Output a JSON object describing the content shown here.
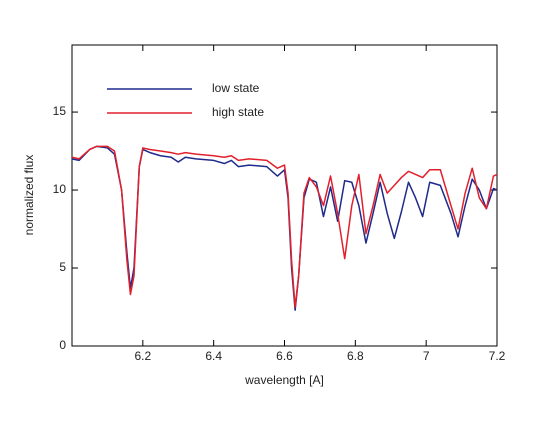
{
  "chart_data": {
    "type": "line",
    "x_label": "wavelength [A]",
    "y_label": "normalized flux",
    "x": [
      6.0,
      6.02,
      6.05,
      6.07,
      6.1,
      6.12,
      6.14,
      6.155,
      6.165,
      6.175,
      6.19,
      6.2,
      6.22,
      6.25,
      6.28,
      6.3,
      6.32,
      6.35,
      6.4,
      6.43,
      6.45,
      6.47,
      6.5,
      6.55,
      6.58,
      6.6,
      6.61,
      6.62,
      6.63,
      6.64,
      6.655,
      6.67,
      6.69,
      6.71,
      6.73,
      6.75,
      6.77,
      6.79,
      6.81,
      6.83,
      6.85,
      6.87,
      6.89,
      6.91,
      6.93,
      6.95,
      6.97,
      6.99,
      7.01,
      7.04,
      7.07,
      7.09,
      7.11,
      7.13,
      7.15,
      7.17,
      7.19,
      7.2
    ],
    "series": [
      {
        "name": "low state",
        "color": "#1f2a8a",
        "values": [
          12.0,
          11.9,
          12.6,
          12.8,
          12.7,
          12.3,
          10.0,
          6.0,
          3.7,
          5.0,
          11.5,
          12.6,
          12.4,
          12.2,
          12.1,
          11.8,
          12.1,
          12.0,
          11.9,
          11.7,
          11.9,
          11.5,
          11.6,
          11.5,
          10.9,
          11.3,
          9.5,
          5.0,
          2.3,
          4.5,
          9.5,
          10.7,
          10.5,
          8.3,
          10.2,
          8.0,
          10.6,
          10.5,
          9.0,
          6.6,
          8.5,
          10.5,
          8.5,
          6.9,
          8.6,
          10.5,
          9.5,
          8.3,
          10.5,
          10.3,
          8.5,
          7.0,
          9.0,
          10.7,
          10.0,
          8.8,
          10.1,
          10.0
        ]
      },
      {
        "name": "high state",
        "color": "#e2202c",
        "values": [
          12.1,
          12.0,
          12.6,
          12.8,
          12.8,
          12.5,
          10.0,
          5.5,
          3.3,
          4.5,
          11.5,
          12.7,
          12.6,
          12.5,
          12.4,
          12.3,
          12.4,
          12.3,
          12.2,
          12.1,
          12.2,
          11.9,
          12.0,
          11.9,
          11.4,
          11.6,
          9.8,
          5.5,
          2.5,
          4.5,
          9.8,
          10.8,
          10.2,
          9.0,
          10.9,
          8.5,
          5.6,
          9.0,
          11.0,
          7.2,
          9.0,
          11.0,
          9.8,
          10.3,
          10.8,
          11.2,
          11.0,
          10.8,
          11.3,
          11.3,
          9.0,
          7.5,
          9.8,
          11.4,
          9.5,
          8.8,
          10.9,
          11.0
        ]
      }
    ],
    "xlim": [
      6.0,
      7.2
    ],
    "ylim": [
      0,
      19.3
    ],
    "xticks": [
      6.2,
      6.4,
      6.6,
      6.8,
      7,
      7.2
    ],
    "yticks": [
      0,
      5,
      10,
      15
    ],
    "legend": "upper left"
  }
}
